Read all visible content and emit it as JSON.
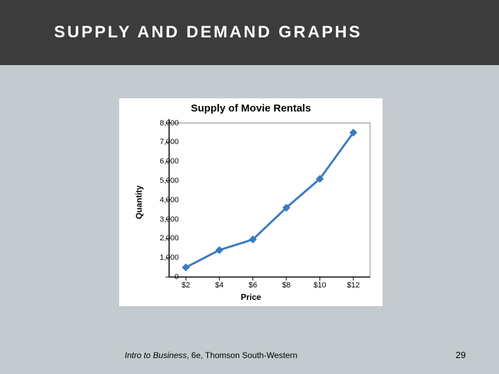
{
  "slide": {
    "title": "SUPPLY AND DEMAND GRAPHS",
    "background_color": "#c3cbce",
    "title_bar_color": "#3c3c3c",
    "title_text_color": "#ffffff",
    "title_fontsize": 24,
    "title_letter_spacing": 3
  },
  "chart": {
    "type": "line",
    "title": "Supply of Movie Rentals",
    "title_fontsize": 15,
    "title_fontweight": "bold",
    "background_color": "#ffffff",
    "xlabel": "Price",
    "ylabel": "Quantity",
    "label_fontsize": 12,
    "label_fontweight": "bold",
    "line_color": "#3a7bbf",
    "line_width": 3,
    "marker_style": "diamond",
    "marker_size": 7,
    "marker_color": "#3a7bbf",
    "axis_color": "#000000",
    "tick_length": 5,
    "inner_box_color": "#888888",
    "inner_box_width": 1,
    "x": {
      "values": [
        2,
        4,
        6,
        8,
        10,
        12
      ],
      "labels": [
        "$2",
        "$4",
        "$6",
        "$8",
        "$10",
        "$12"
      ],
      "lim": [
        1,
        13
      ]
    },
    "y": {
      "ticks": [
        0,
        1000,
        2000,
        3000,
        4000,
        5000,
        6000,
        7000,
        8000
      ],
      "tick_labels": [
        "0",
        "1,000",
        "2,000",
        "3,000",
        "4,000",
        "5,000",
        "6,000",
        "7,000",
        "8,000"
      ],
      "lim": [
        0,
        8200
      ]
    },
    "series": {
      "values": [
        500,
        1400,
        1950,
        3600,
        5100,
        7500
      ]
    }
  },
  "footer": {
    "source_italic": "Intro to Business",
    "source_rest": ", 6e, Thomson South-Western",
    "page_number": "29",
    "fontsize": 12
  }
}
